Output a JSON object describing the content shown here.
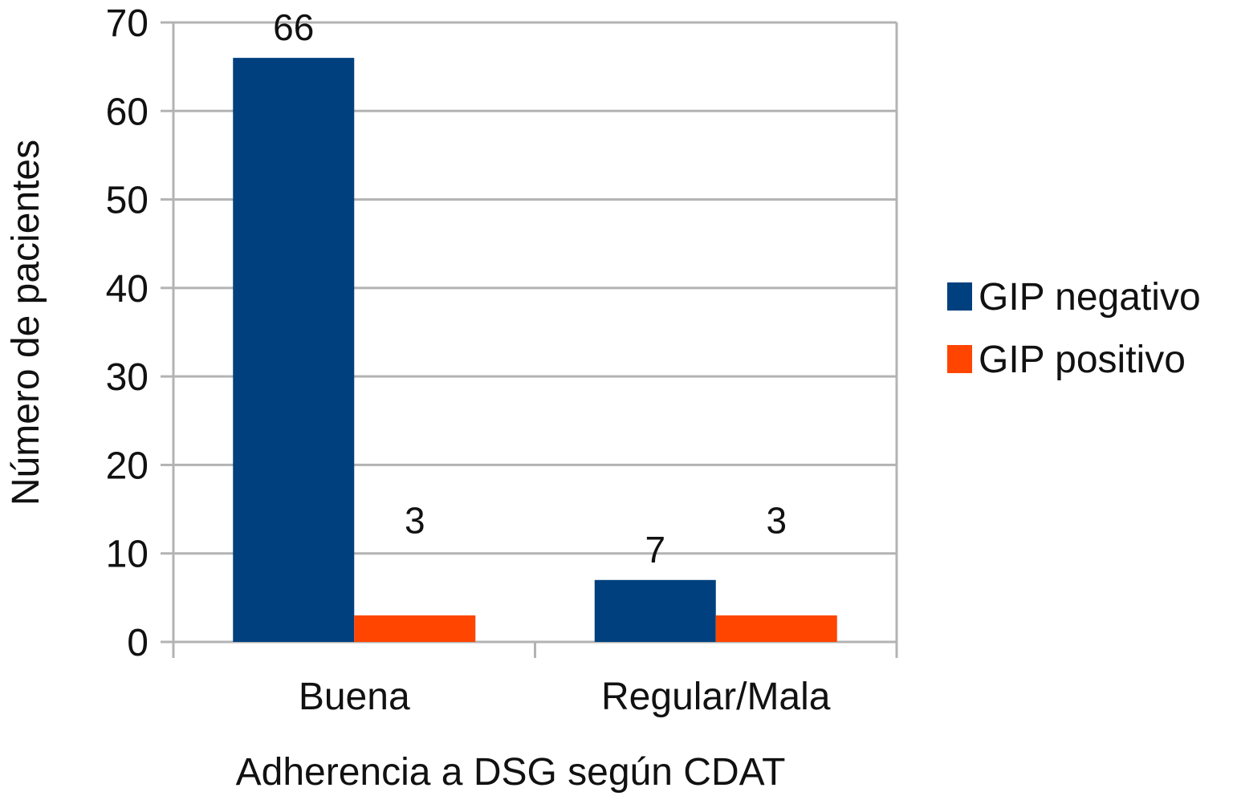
{
  "chart_data": {
    "type": "bar",
    "categories": [
      "Buena",
      "Regular/Mala"
    ],
    "series": [
      {
        "name": "GIP negativo",
        "values": [
          66,
          7
        ],
        "labels": [
          "66",
          "7"
        ],
        "color": "#00407F"
      },
      {
        "name": "GIP positivo",
        "values": [
          3,
          3
        ],
        "labels": [
          "3",
          "3"
        ],
        "color": "#FF4500"
      }
    ],
    "xlabel": "Adherencia a DSG según CDAT",
    "ylabel": "Número de pacientes",
    "ylim": [
      0,
      70
    ],
    "yticks": [
      "0",
      "10",
      "20",
      "30",
      "40",
      "50",
      "60",
      "70"
    ],
    "grid": true,
    "legend_position": "right"
  }
}
